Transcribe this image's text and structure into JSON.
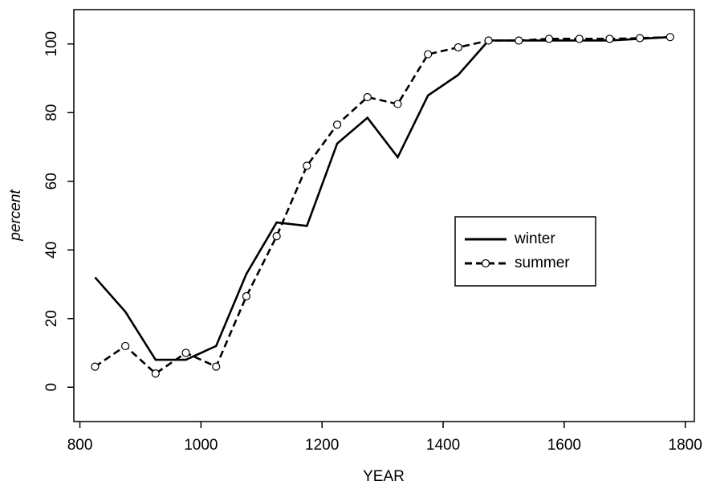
{
  "chart_data": {
    "type": "line",
    "xlabel": "YEAR",
    "ylabel": "percent",
    "x": [
      825,
      875,
      925,
      975,
      1025,
      1075,
      1125,
      1175,
      1225,
      1275,
      1325,
      1375,
      1425,
      1475,
      1525,
      1575,
      1625,
      1675,
      1725,
      1775
    ],
    "series": [
      {
        "name": "winter",
        "color": "#000000",
        "style": "solid",
        "marker": "none",
        "values": [
          32,
          22,
          8,
          8,
          12,
          33,
          48,
          47,
          71,
          78.5,
          67,
          85,
          91,
          101,
          101,
          101,
          101,
          101,
          101.5,
          102
        ]
      },
      {
        "name": "summer",
        "color": "#000000",
        "style": "dashed",
        "marker": "circle",
        "values": [
          6,
          12,
          4,
          10,
          6,
          26.5,
          44,
          64.5,
          76.5,
          84.5,
          82.5,
          97,
          99,
          101,
          101,
          101.5,
          101.5,
          101.5,
          101.7,
          102
        ]
      }
    ],
    "xlim": [
      790,
      1815
    ],
    "xticks": [
      800,
      1000,
      1200,
      1400,
      1600,
      1800
    ],
    "ylim": [
      -10,
      110
    ],
    "yticks": [
      0,
      20,
      40,
      60,
      80,
      100
    ],
    "grid": false,
    "legend": "right"
  }
}
